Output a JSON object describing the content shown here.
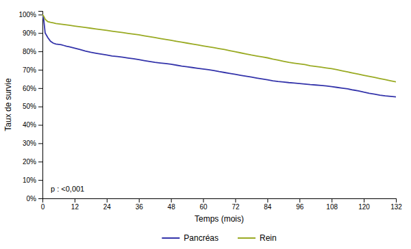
{
  "chart_data": {
    "type": "line",
    "xlabel": "Temps (mois)",
    "ylabel": "Taux de survie",
    "annotation": "p : <0,001",
    "xlim": [
      0,
      132
    ],
    "ylim": [
      0,
      1.02
    ],
    "xticks": [
      0,
      12,
      24,
      36,
      48,
      60,
      72,
      84,
      96,
      108,
      120,
      132
    ],
    "yticks": [
      {
        "value": 0.0,
        "label": "0%"
      },
      {
        "value": 0.1,
        "label": "10%"
      },
      {
        "value": 0.2,
        "label": "20%"
      },
      {
        "value": 0.3,
        "label": "30%"
      },
      {
        "value": 0.4,
        "label": "40%"
      },
      {
        "value": 0.5,
        "label": "50%"
      },
      {
        "value": 0.6,
        "label": "60%"
      },
      {
        "value": 0.7,
        "label": "70%"
      },
      {
        "value": 0.8,
        "label": "80%"
      },
      {
        "value": 0.9,
        "label": "90%"
      },
      {
        "value": 1.0,
        "label": "100%"
      }
    ],
    "grid": false,
    "legend": "bottom",
    "x": [
      0,
      0.5,
      1,
      2,
      3,
      4,
      5,
      6,
      7,
      8,
      9,
      10,
      12,
      14,
      16,
      18,
      20,
      22,
      24,
      26,
      28,
      30,
      32,
      34,
      36,
      38,
      40,
      42,
      44,
      46,
      48,
      50,
      52,
      54,
      56,
      58,
      60,
      62,
      64,
      66,
      68,
      70,
      72,
      74,
      76,
      78,
      80,
      82,
      84,
      86,
      88,
      90,
      92,
      94,
      96,
      98,
      100,
      102,
      104,
      106,
      108,
      110,
      112,
      114,
      116,
      118,
      120,
      122,
      124,
      126,
      128,
      130,
      132
    ],
    "series": [
      {
        "name": "Pancréas",
        "color": "#3333aa",
        "values": [
          1.0,
          0.97,
          0.9,
          0.875,
          0.855,
          0.845,
          0.84,
          0.838,
          0.836,
          0.832,
          0.828,
          0.825,
          0.818,
          0.81,
          0.802,
          0.795,
          0.79,
          0.785,
          0.78,
          0.775,
          0.772,
          0.768,
          0.764,
          0.76,
          0.755,
          0.75,
          0.745,
          0.74,
          0.737,
          0.734,
          0.73,
          0.725,
          0.72,
          0.716,
          0.712,
          0.708,
          0.704,
          0.7,
          0.696,
          0.69,
          0.685,
          0.68,
          0.675,
          0.67,
          0.665,
          0.66,
          0.655,
          0.65,
          0.645,
          0.64,
          0.636,
          0.633,
          0.63,
          0.628,
          0.625,
          0.622,
          0.619,
          0.617,
          0.615,
          0.612,
          0.608,
          0.604,
          0.6,
          0.596,
          0.59,
          0.585,
          0.578,
          0.572,
          0.567,
          0.562,
          0.558,
          0.555,
          0.552
        ]
      },
      {
        "name": "Rein",
        "color": "#99aa22",
        "values": [
          1.0,
          0.99,
          0.975,
          0.962,
          0.958,
          0.955,
          0.952,
          0.95,
          0.948,
          0.946,
          0.944,
          0.942,
          0.938,
          0.934,
          0.93,
          0.926,
          0.922,
          0.918,
          0.914,
          0.91,
          0.906,
          0.902,
          0.898,
          0.894,
          0.89,
          0.885,
          0.88,
          0.875,
          0.87,
          0.865,
          0.86,
          0.855,
          0.85,
          0.845,
          0.84,
          0.835,
          0.83,
          0.825,
          0.82,
          0.815,
          0.81,
          0.804,
          0.798,
          0.792,
          0.786,
          0.78,
          0.775,
          0.77,
          0.765,
          0.758,
          0.752,
          0.746,
          0.74,
          0.736,
          0.732,
          0.728,
          0.722,
          0.718,
          0.714,
          0.71,
          0.706,
          0.7,
          0.694,
          0.688,
          0.682,
          0.676,
          0.67,
          0.664,
          0.658,
          0.652,
          0.646,
          0.64,
          0.634
        ]
      }
    ]
  }
}
